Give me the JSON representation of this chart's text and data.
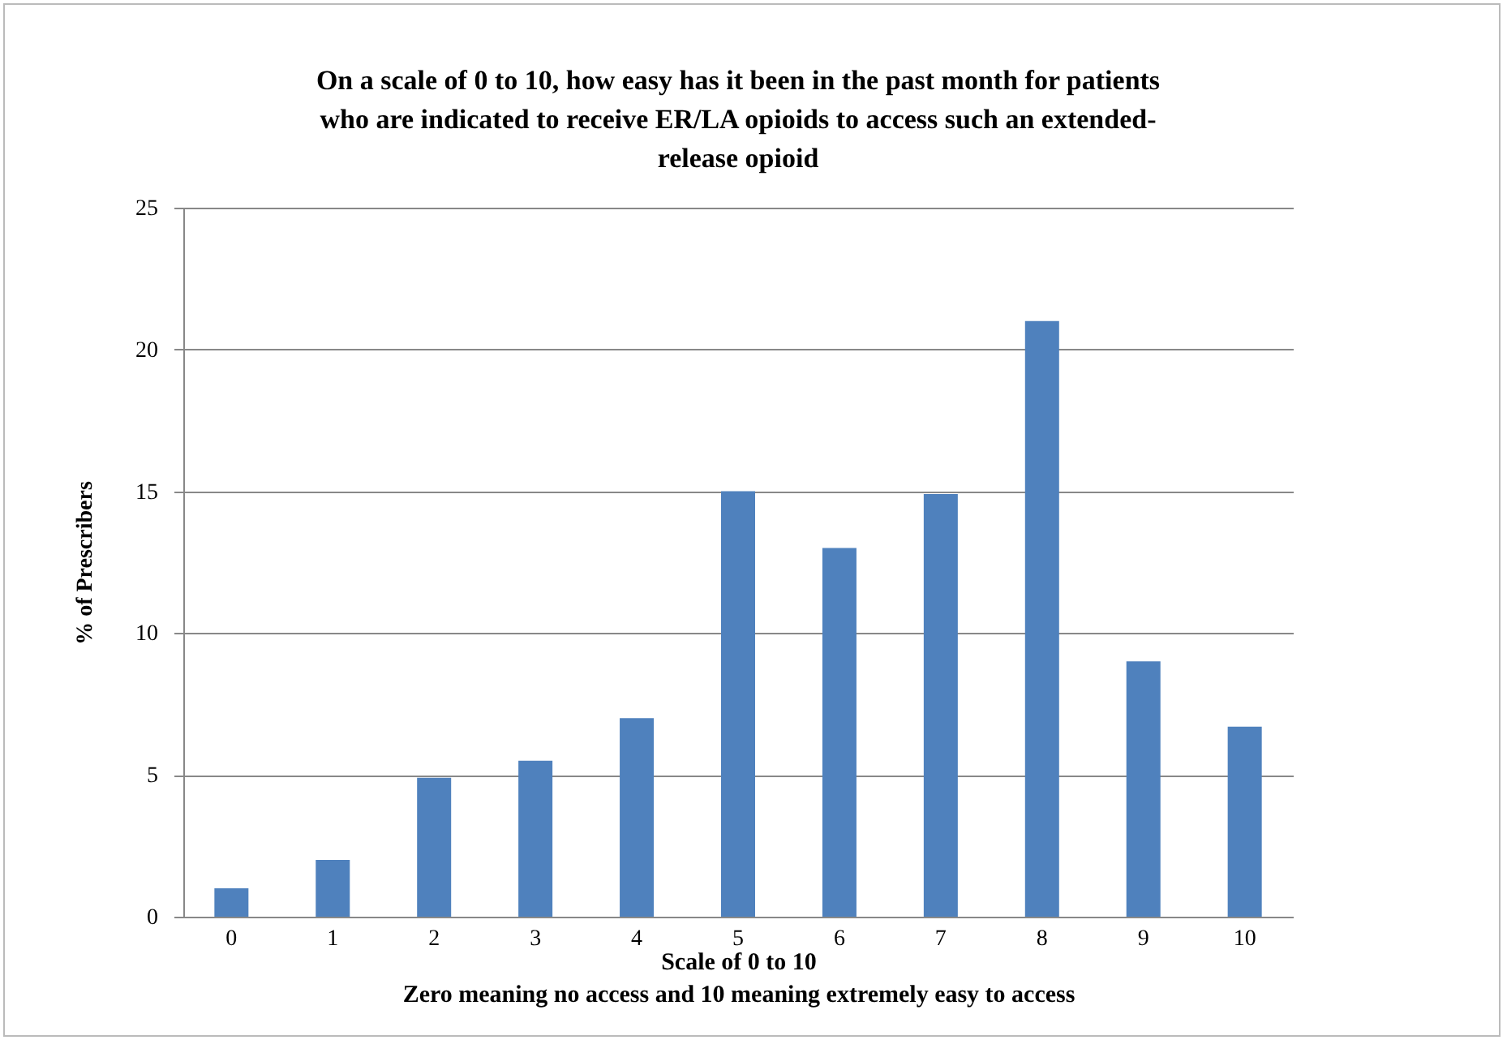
{
  "chart_data": {
    "type": "bar",
    "title": "On a scale of 0 to 10, how easy has it been in the past month for patients\nwho are indicated to receive ER/LA opioids to access such an extended-\nrelease opioid",
    "xlabel": "Scale of 0 to 10\nZero meaning no access and 10 meaning extremely easy to access",
    "ylabel": "% of Prescribers",
    "categories": [
      "0",
      "1",
      "2",
      "3",
      "4",
      "5",
      "6",
      "7",
      "8",
      "9",
      "10"
    ],
    "values": [
      1,
      2,
      4.9,
      5.5,
      7,
      15,
      13,
      14.9,
      21,
      9,
      6.7
    ],
    "color": "#4f81bd",
    "ylim": [
      0,
      25
    ],
    "yticks": [
      0,
      5,
      10,
      15,
      20,
      25
    ],
    "grid": "y"
  }
}
